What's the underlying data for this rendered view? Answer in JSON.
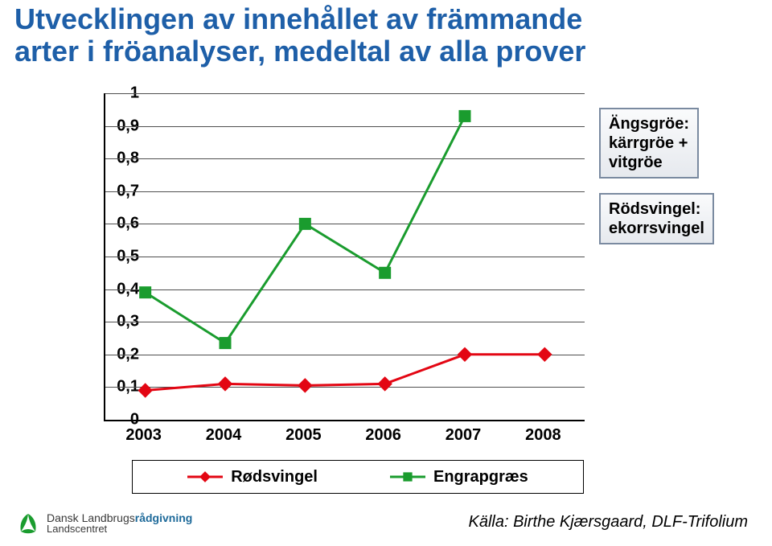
{
  "title_line1": "Utvecklingen av innehållet av främmande",
  "title_line2": "arter i fröanalyser, medeltal av alla prover",
  "title_color": "#1e5fa8",
  "title_fontsize": 36,
  "chart": {
    "type": "line",
    "background_color": "#ffffff",
    "grid_color": "#4f4f4f",
    "axis_color": "#000000",
    "ylim": [
      0,
      1
    ],
    "ytick_step": 0.1,
    "y_ticks": [
      "0",
      "0,1",
      "0,2",
      "0,3",
      "0,4",
      "0,5",
      "0,6",
      "0,7",
      "0,8",
      "0,9",
      "1"
    ],
    "x_categories": [
      "2003",
      "2004",
      "2005",
      "2006",
      "2007",
      "2008"
    ],
    "tick_fontsize": 20,
    "tick_color": "#000000",
    "line_width": 3,
    "marker_size": 12,
    "series": {
      "rodsvingel": {
        "color": "#e30613",
        "marker": "diamond",
        "values": [
          0.09,
          0.11,
          0.105,
          0.11,
          0.2,
          0.2
        ]
      },
      "engrapgraes": {
        "color": "#1a9c2e",
        "marker": "square",
        "values": [
          0.39,
          0.235,
          0.6,
          0.45,
          0.93,
          null
        ]
      }
    }
  },
  "annotations": {
    "box1_line1": "Ängsgröe:",
    "box1_line2": "kärrgröe +",
    "box1_line3": "vitgröe",
    "box2_line1": "Rödsvingel:",
    "box2_line2": "ekorrsvingel",
    "fontsize": 20,
    "text_color": "#000000",
    "border_color": "#7a8aa0",
    "bg_top": "#fafbfc",
    "bg_bottom": "#e6e9ee"
  },
  "legend": {
    "fontsize": 20,
    "items": {
      "rodsvingel": {
        "label": "Rødsvingel",
        "color": "#e30613",
        "marker": "diamond"
      },
      "engrapgraes": {
        "label": "Engrapgræs",
        "color": "#1a9c2e",
        "marker": "square"
      }
    }
  },
  "footer": {
    "org_line1_a": "Dansk Landbrugs",
    "org_line1_b": "rådgivning",
    "org_line2": "Landscentret",
    "leaf_color": "#1a9c2e"
  },
  "source": {
    "text": "Källa: Birthe Kjærsgaard, DLF-Trifolium",
    "fontsize": 20,
    "color": "#000000"
  }
}
